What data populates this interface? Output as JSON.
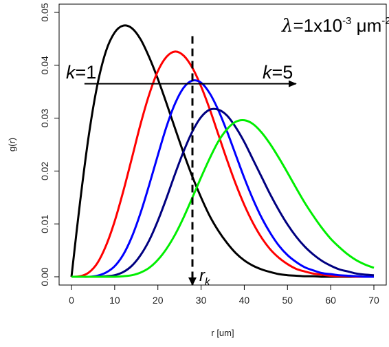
{
  "chart_data": {
    "type": "line",
    "xlabel": "r [um]",
    "ylabel": "g(r)",
    "xlim": [
      0,
      70
    ],
    "ylim": [
      0,
      0.05
    ],
    "x_ticks": [
      "0",
      "10",
      "20",
      "30",
      "40",
      "50",
      "60",
      "70"
    ],
    "y_ticks": [
      "0.00",
      "0.01",
      "0.02",
      "0.03",
      "0.04",
      "0.05"
    ],
    "grid": false,
    "series": [
      {
        "color": "#000000",
        "x": [
          0,
          2,
          4,
          6,
          8,
          10,
          12,
          14,
          16,
          18,
          20,
          22,
          24,
          26,
          28,
          30,
          32,
          34,
          36,
          38,
          40,
          42,
          44,
          46,
          48,
          50,
          52,
          54,
          56,
          58,
          60,
          62,
          64,
          66,
          68,
          70
        ],
        "values": [
          0.0,
          0.0142,
          0.0267,
          0.0363,
          0.0427,
          0.0462,
          0.0475,
          0.047,
          0.0449,
          0.0415,
          0.0374,
          0.0328,
          0.028,
          0.0233,
          0.0189,
          0.015,
          0.0115,
          0.0087,
          0.0064,
          0.0045,
          0.0031,
          0.0021,
          0.0014,
          0.0009,
          0.0005,
          0.0003,
          0.0002,
          0.0001,
          0.0001,
          0.0,
          0.0,
          0.0,
          0.0,
          0.0,
          0.0,
          0.0
        ]
      },
      {
        "color": "#ff0000",
        "x": [
          0,
          2,
          4,
          6,
          8,
          10,
          12,
          14,
          16,
          18,
          20,
          22,
          24,
          26,
          28,
          30,
          32,
          34,
          36,
          38,
          40,
          42,
          44,
          46,
          48,
          50,
          52,
          54,
          56,
          58,
          60,
          62,
          64,
          66,
          68,
          70
        ],
        "values": [
          0.0,
          0.0001,
          0.0008,
          0.0026,
          0.0059,
          0.0105,
          0.0162,
          0.0225,
          0.0289,
          0.0345,
          0.0389,
          0.0416,
          0.0426,
          0.0418,
          0.0395,
          0.036,
          0.0317,
          0.0269,
          0.0221,
          0.0176,
          0.0136,
          0.0102,
          0.0074,
          0.0052,
          0.0036,
          0.0024,
          0.0015,
          0.001,
          0.0006,
          0.0004,
          0.0002,
          0.0001,
          0.0001,
          0.0,
          0.0,
          0.0
        ]
      },
      {
        "color": "#0000ff",
        "x": [
          0,
          2,
          4,
          6,
          8,
          10,
          12,
          14,
          16,
          18,
          20,
          22,
          24,
          26,
          28,
          30,
          32,
          34,
          36,
          38,
          40,
          42,
          44,
          46,
          48,
          50,
          52,
          54,
          56,
          58,
          60,
          62,
          64,
          66,
          68,
          70
        ],
        "values": [
          0.0,
          0.0,
          0.0,
          0.0002,
          0.0008,
          0.002,
          0.0042,
          0.0076,
          0.0121,
          0.0174,
          0.023,
          0.0284,
          0.0328,
          0.0358,
          0.0371,
          0.0367,
          0.0347,
          0.0315,
          0.0275,
          0.0231,
          0.0187,
          0.0147,
          0.0112,
          0.0083,
          0.0059,
          0.0041,
          0.0028,
          0.0018,
          0.0012,
          0.0007,
          0.0005,
          0.0003,
          0.0002,
          0.0001,
          0.0,
          0.0
        ]
      },
      {
        "color": "#000080",
        "x": [
          0,
          2,
          4,
          6,
          8,
          10,
          12,
          14,
          16,
          18,
          20,
          22,
          24,
          26,
          28,
          30,
          32,
          34,
          36,
          38,
          40,
          42,
          44,
          46,
          48,
          50,
          52,
          54,
          56,
          58,
          60,
          62,
          64,
          66,
          68,
          70
        ],
        "values": [
          0.0,
          0.0,
          0.0,
          0.0,
          0.0001,
          0.0003,
          0.0009,
          0.0021,
          0.0041,
          0.0069,
          0.0106,
          0.0149,
          0.0195,
          0.0238,
          0.0275,
          0.0302,
          0.0316,
          0.0316,
          0.0305,
          0.0283,
          0.0255,
          0.0222,
          0.0189,
          0.0156,
          0.0126,
          0.0099,
          0.0076,
          0.0057,
          0.0042,
          0.003,
          0.0021,
          0.0014,
          0.001,
          0.0006,
          0.0004,
          0.0003
        ]
      },
      {
        "color": "#00ee00",
        "x": [
          0,
          2,
          4,
          6,
          8,
          10,
          12,
          14,
          16,
          18,
          20,
          22,
          24,
          26,
          28,
          30,
          32,
          34,
          36,
          38,
          40,
          42,
          44,
          46,
          48,
          50,
          52,
          54,
          56,
          58,
          60,
          62,
          64,
          66,
          68,
          70
        ],
        "values": [
          0.0,
          0.0,
          0.0,
          0.0,
          0.0,
          0.0,
          0.0001,
          0.0003,
          0.0008,
          0.0017,
          0.0032,
          0.0053,
          0.008,
          0.0113,
          0.015,
          0.0188,
          0.0224,
          0.0256,
          0.0279,
          0.0293,
          0.0296,
          0.0289,
          0.0273,
          0.0251,
          0.0225,
          0.0197,
          0.0168,
          0.014,
          0.0115,
          0.0092,
          0.0072,
          0.0056,
          0.0042,
          0.0031,
          0.0023,
          0.0017
        ]
      }
    ],
    "annotations": {
      "lambda_label": {
        "symbol": "λ",
        "text": "=1x10",
        "exponent": "-3",
        "unit": " μm",
        "unit_exponent": "-2"
      },
      "k_start": {
        "k": "k",
        "value": "=1"
      },
      "k_end": {
        "k": "k",
        "value": "=5"
      },
      "rk_label": {
        "r": "r",
        "sub": "k"
      },
      "arrow_y_value": 0.0365,
      "arrow_x_start": 3.0,
      "arrow_x_end": 52.0,
      "rk_x_value": 28.0
    }
  }
}
